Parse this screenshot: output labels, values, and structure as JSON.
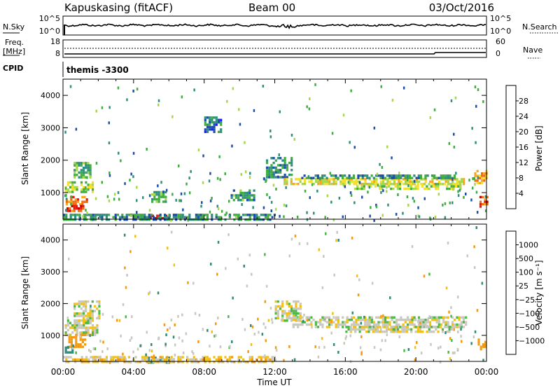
{
  "header": {
    "title": "Kapuskasing (fitACF)",
    "beam": "Beam 00",
    "date": "03/Oct/2016"
  },
  "noise_panel": {
    "left_label": "N.Sky",
    "left_ticks": [
      "10^5",
      "10^0"
    ],
    "right_label": "N.Search",
    "right_ticks": [
      "10^5",
      "10^0"
    ]
  },
  "freq_panel": {
    "left_label_1": "Freq.",
    "left_label_2": "[MHz]",
    "left_ticks": [
      "18",
      "8"
    ],
    "right_label": "Nave",
    "right_ticks": [
      "60",
      "0"
    ]
  },
  "cpid_panel": {
    "label": "CPID",
    "value": "themis -3300"
  },
  "colors": {
    "power_scale": [
      "#1a1aff",
      "#1e4fa8",
      "#2f8f7f",
      "#3fae3f",
      "#a6d84a",
      "#f2e02a",
      "#f5a623",
      "#f26a10",
      "#e8180c",
      "#c80000"
    ],
    "velocity_scale": [
      "#1515c8",
      "#2a56c6",
      "#2f8a7a",
      "#4cb845",
      "#c8c8c0",
      "#f0c014",
      "#f59a10",
      "#f26010",
      "#e31a0a"
    ],
    "ground_scatter": "#c8c8c0"
  },
  "chart_data": [
    {
      "type": "heatmap",
      "name": "power",
      "xlabel": "",
      "ylabel": "Slant Range [km]",
      "x_ticks": [
        "00:00",
        "04:00",
        "08:00",
        "12:00",
        "16:00",
        "20:00",
        "00:00"
      ],
      "xlim_hours": [
        0,
        24
      ],
      "y_ticks": [
        1000,
        2000,
        3000,
        4000
      ],
      "ylim": [
        180,
        4500
      ],
      "colorbar_label": "Power [dB]",
      "colorbar_ticks": [
        "4",
        "8",
        "12",
        "16",
        "20",
        "24",
        "28"
      ],
      "colorbar_range": [
        0,
        30
      ],
      "bands": [
        {
          "t0": 0.1,
          "t1": 1.7,
          "r0": 1050,
          "r1": 1350,
          "db": 14
        },
        {
          "t0": 0.6,
          "t1": 1.6,
          "r0": 1450,
          "r1": 1950,
          "db": 10
        },
        {
          "t0": 0.15,
          "t1": 1.4,
          "r0": 650,
          "r1": 900,
          "db": 22
        },
        {
          "t0": 0.2,
          "t1": 1.2,
          "r0": 450,
          "r1": 620,
          "db": 24
        },
        {
          "t0": 4.9,
          "t1": 5.9,
          "r0": 180,
          "r1": 320,
          "db": 28
        },
        {
          "t0": 11.5,
          "t1": 13.0,
          "r0": 1500,
          "r1": 2100,
          "db": 8
        },
        {
          "t0": 12.5,
          "t1": 22.8,
          "r0": 1300,
          "r1": 1450,
          "db": 16
        },
        {
          "t0": 13.5,
          "t1": 22.5,
          "r0": 1450,
          "r1": 1560,
          "db": 8
        },
        {
          "t0": 16.5,
          "t1": 22.5,
          "r0": 1150,
          "r1": 1300,
          "db": 14
        },
        {
          "t0": 23.3,
          "t1": 24.0,
          "r0": 1300,
          "r1": 1700,
          "db": 20
        },
        {
          "t0": 23.6,
          "t1": 24.0,
          "r0": 600,
          "r1": 900,
          "db": 24
        },
        {
          "t0": 0.0,
          "t1": 12.0,
          "r0": 180,
          "r1": 350,
          "db": 8
        },
        {
          "t0": 5.0,
          "t1": 5.8,
          "r0": 750,
          "r1": 1050,
          "db": 10
        },
        {
          "t0": 9.5,
          "t1": 10.8,
          "r0": 750,
          "r1": 1100,
          "db": 9
        },
        {
          "t0": 8.0,
          "t1": 9.0,
          "r0": 2900,
          "r1": 3350,
          "db": 6
        }
      ]
    },
    {
      "type": "heatmap",
      "name": "velocity",
      "xlabel": "Time UT",
      "ylabel": "Slant Range [km]",
      "x_ticks": [
        "00:00",
        "04:00",
        "08:00",
        "12:00",
        "16:00",
        "20:00",
        "00:00"
      ],
      "xlim_hours": [
        0,
        24
      ],
      "y_ticks": [
        1000,
        2000,
        3000,
        4000
      ],
      "ylim": [
        180,
        4500
      ],
      "colorbar_label": "Velocity [m s⁻¹]",
      "colorbar_ticks": [
        "1000",
        "500",
        "100",
        "25",
        "−25",
        "−100",
        "−500",
        "−1000"
      ],
      "bands": [
        {
          "t0": 0.1,
          "t1": 1.9,
          "r0": 1050,
          "r1": 1500,
          "v": 0
        },
        {
          "t0": 0.6,
          "t1": 2.0,
          "r0": 1500,
          "r1": 2100,
          "v": 0
        },
        {
          "t0": 0.3,
          "t1": 1.2,
          "r0": 650,
          "r1": 1050,
          "v": -200
        },
        {
          "t0": 0.1,
          "t1": 0.6,
          "r0": 450,
          "r1": 650,
          "v": 200
        },
        {
          "t0": 4.8,
          "t1": 6.0,
          "r0": 180,
          "r1": 330,
          "v": 150
        },
        {
          "t0": 12.0,
          "t1": 13.5,
          "r0": 1450,
          "r1": 2100,
          "v": 0
        },
        {
          "t0": 13.0,
          "t1": 22.8,
          "r0": 1300,
          "r1": 1600,
          "v": 0
        },
        {
          "t0": 16.0,
          "t1": 22.0,
          "r0": 1100,
          "r1": 1300,
          "v": 0
        },
        {
          "t0": 23.5,
          "t1": 24.0,
          "r0": 550,
          "r1": 900,
          "v": -400
        },
        {
          "t0": 0.0,
          "t1": 12.0,
          "r0": 180,
          "r1": 350,
          "v": -50
        }
      ]
    }
  ]
}
